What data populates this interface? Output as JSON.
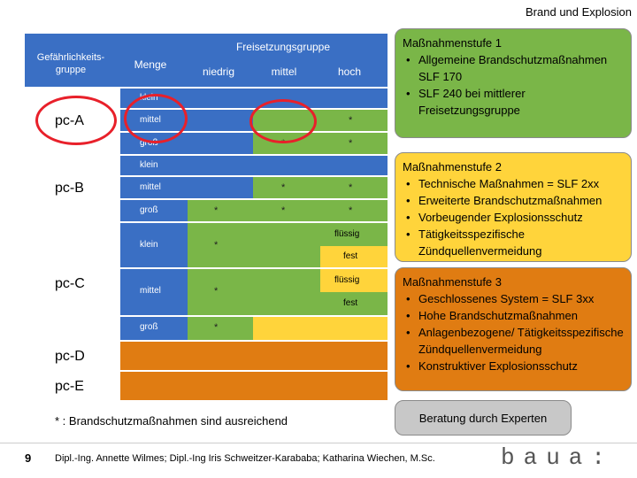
{
  "header": {
    "title": "Brand und Explosion"
  },
  "table": {
    "group_header": "Gefährlichkeits-gruppe",
    "amount_header": "Menge",
    "release_header": "Freisetzungsgruppe",
    "release_cols": [
      "niedrig",
      "mittel",
      "hoch"
    ],
    "sizes": {
      "small": "klein",
      "medium": "mittel",
      "large": "groß"
    },
    "groups": [
      "pc-A",
      "pc-B",
      "pc-C",
      "pc-D",
      "pc-E"
    ],
    "star": "*",
    "states": {
      "liquid": "flüssig",
      "solid": "fest"
    }
  },
  "footnote": "* : Brandschutzmaßnahmen sind ausreichend",
  "stages": [
    {
      "title": "Maßnahmenstufe 1",
      "items": [
        "Allgemeine Brandschutzmaßnahmen SLF 170",
        "SLF 240 bei mittlerer Freisetzungsgruppe"
      ]
    },
    {
      "title": "Maßnahmenstufe 2",
      "items": [
        "Technische Maßnahmen = SLF 2xx",
        "Erweiterte Brandschutzmaßnahmen",
        "Vorbeugender Explosionsschutz",
        "Tätigkeitsspezifische Zündquellenvermeidung"
      ]
    },
    {
      "title": "Maßnahmenstufe 3",
      "items": [
        "Geschlossenes System = SLF 3xx",
        "Hohe Brandschutzmaßnahmen",
        "Anlagenbezogene/ Tätigkeitsspezifische Zündquellenvermeidung",
        "Konstruktiver Explosionsschutz"
      ]
    }
  ],
  "expert": "Beratung durch Experten",
  "footer": {
    "page": "9",
    "authors": "Dipl.-Ing. Annette Wilmes; Dipl.-Ing Iris Schweitzer-Karababa; Katharina Wiechen, M.Sc.",
    "logo": "baua:"
  },
  "colors": {
    "blue": "#3a6fc4",
    "green": "#7ab648",
    "yellow": "#ffd43b",
    "orange": "#e07c12",
    "red": "#e8202a"
  }
}
